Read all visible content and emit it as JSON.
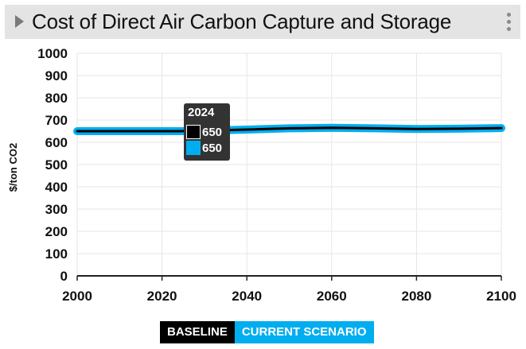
{
  "header": {
    "title": "Cost of Direct Air Carbon Capture and Storage"
  },
  "tooltip": {
    "year": "2024",
    "rows": [
      {
        "value": "650",
        "color": "#000000"
      },
      {
        "value": "650",
        "color": "#00aeef"
      }
    ]
  },
  "legend": {
    "items": [
      {
        "label": "BASELINE",
        "color": "#000000"
      },
      {
        "label": "CURRENT SCENARIO",
        "color": "#00aeef"
      }
    ]
  },
  "chart_data": {
    "type": "line",
    "ylabel": "$/ton CO2",
    "xlabel": "",
    "xlim": [
      2000,
      2100
    ],
    "ylim": [
      0,
      1000
    ],
    "x_ticks": [
      2000,
      2020,
      2040,
      2060,
      2080,
      2100
    ],
    "y_ticks": [
      0,
      100,
      200,
      300,
      400,
      500,
      600,
      700,
      800,
      900,
      1000
    ],
    "grid": true,
    "legend_position": "bottom",
    "series": [
      {
        "name": "BASELINE",
        "color": "#000000",
        "x": [
          2000,
          2010,
          2020,
          2024,
          2030,
          2040,
          2050,
          2060,
          2070,
          2080,
          2090,
          2100
        ],
        "y": [
          650,
          650,
          650,
          650,
          652,
          657,
          663,
          665,
          663,
          660,
          661,
          664
        ]
      },
      {
        "name": "CURRENT SCENARIO",
        "color": "#00aeef",
        "x": [
          2000,
          2010,
          2020,
          2024,
          2030,
          2040,
          2050,
          2060,
          2070,
          2080,
          2090,
          2100
        ],
        "y": [
          650,
          650,
          650,
          650,
          652,
          657,
          663,
          665,
          663,
          660,
          661,
          664
        ]
      }
    ]
  }
}
